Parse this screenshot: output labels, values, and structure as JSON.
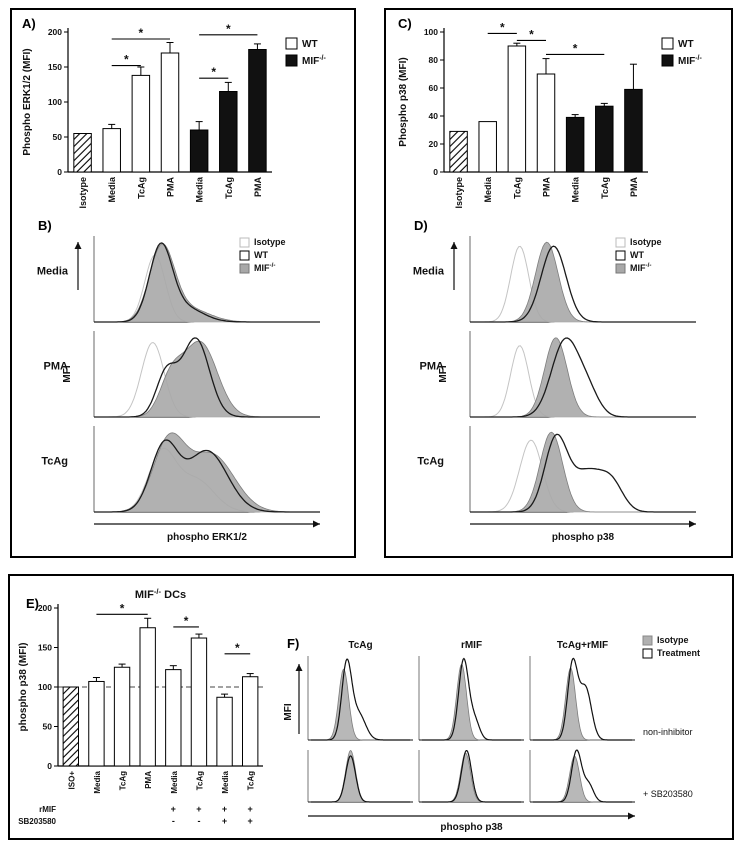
{
  "panels": {
    "a": "A)",
    "b": "B)",
    "c": "C)",
    "d": "D)",
    "e": "E)",
    "f": "F)"
  },
  "colors": {
    "black_bar": "#111111",
    "white_bar": "#ffffff",
    "hist_gray": "#a8a8a8",
    "hist_gray_stroke": "#7d7d7d",
    "iso_gray": "#c4c4c4",
    "iso_fill": "#b0b0b0",
    "line_dark": "#1a1a1a"
  },
  "chart_data": [
    {
      "id": "A",
      "type": "bar",
      "ylabel": "Phospho ERK1/2 (MFI)",
      "ylim": [
        0,
        200
      ],
      "yticks": [
        0,
        50,
        100,
        150,
        200
      ],
      "categories": [
        "Isotype",
        "Media",
        "TcAg",
        "PMA",
        "Media",
        "TcAg",
        "PMA"
      ],
      "values": [
        55,
        62,
        138,
        170,
        60,
        115,
        175
      ],
      "errors": [
        0,
        6,
        12,
        15,
        12,
        13,
        8
      ],
      "styles": [
        "hatch",
        "wt",
        "wt",
        "wt",
        "ko",
        "ko",
        "ko"
      ],
      "brackets": [
        {
          "from": 1,
          "to": 2,
          "y": 152,
          "label": "*"
        },
        {
          "from": 1,
          "to": 3,
          "y": 190,
          "label": "*"
        },
        {
          "from": 4,
          "to": 5,
          "y": 134,
          "label": "*"
        },
        {
          "from": 4,
          "to": 6,
          "y": 196,
          "label": "*"
        }
      ],
      "legend": [
        {
          "label": "WT",
          "sup": "",
          "style": "wt"
        },
        {
          "label": "MIF",
          "sup": "-/-",
          "style": "ko"
        }
      ]
    },
    {
      "id": "C",
      "type": "bar",
      "ylabel": "Phospho p38 (MFI)",
      "ylim": [
        0,
        100
      ],
      "yticks": [
        0,
        20,
        40,
        60,
        80,
        100
      ],
      "categories": [
        "Isotype",
        "Media",
        "TcAg",
        "PMA",
        "Media",
        "TcAg",
        "PMA"
      ],
      "values": [
        29,
        36,
        90,
        70,
        39,
        47,
        59
      ],
      "errors": [
        0,
        0,
        2,
        11,
        2,
        2,
        18
      ],
      "styles": [
        "hatch",
        "wt",
        "wt",
        "wt",
        "ko",
        "ko",
        "ko"
      ],
      "brackets": [
        {
          "from": 1,
          "to": 2,
          "y": 99,
          "label": "*"
        },
        {
          "from": 2,
          "to": 3,
          "y": 94,
          "label": "*"
        },
        {
          "from": 3,
          "to": 5,
          "y": 84,
          "label": "*"
        }
      ],
      "legend": [
        {
          "label": "WT",
          "sup": "",
          "style": "wt"
        },
        {
          "label": "MIF",
          "sup": "-/-",
          "style": "ko"
        }
      ]
    },
    {
      "id": "B",
      "type": "hist-stack",
      "xlabel": "phospho ERK1/2",
      "ylabel": "MFI",
      "legend": [
        {
          "label": "Isotype",
          "sup": "",
          "style": "iso"
        },
        {
          "label": "WT",
          "sup": "",
          "style": "wt"
        },
        {
          "label": "MIF",
          "sup": "-/-",
          "style": "kofill"
        }
      ],
      "rows": [
        {
          "label": "Media",
          "curves": [
            {
              "name": "Isotype",
              "style": "iso",
              "peaks": [
                {
                  "mu": 0.27,
                  "s": 0.045,
                  "a": 0.92
                }
              ]
            },
            {
              "name": "MIF-/-",
              "style": "kofill",
              "peaks": [
                {
                  "mu": 0.3,
                  "s": 0.055,
                  "a": 1.0
                },
                {
                  "mu": 0.42,
                  "s": 0.09,
                  "a": 0.18
                }
              ]
            },
            {
              "name": "WT",
              "style": "wt",
              "peaks": [
                {
                  "mu": 0.295,
                  "s": 0.05,
                  "a": 1.0
                },
                {
                  "mu": 0.4,
                  "s": 0.08,
                  "a": 0.2
                }
              ]
            }
          ]
        },
        {
          "label": "PMA",
          "curves": [
            {
              "name": "Isotype",
              "style": "iso",
              "peaks": [
                {
                  "mu": 0.26,
                  "s": 0.05,
                  "a": 0.95
                }
              ]
            },
            {
              "name": "MIF-/-",
              "style": "kofill",
              "peaks": [
                {
                  "mu": 0.47,
                  "s": 0.075,
                  "a": 0.95
                },
                {
                  "mu": 0.34,
                  "s": 0.05,
                  "a": 0.45
                }
              ]
            },
            {
              "name": "WT",
              "style": "wt",
              "peaks": [
                {
                  "mu": 0.45,
                  "s": 0.06,
                  "a": 1.0
                },
                {
                  "mu": 0.32,
                  "s": 0.045,
                  "a": 0.55
                }
              ]
            }
          ]
        },
        {
          "label": "TcAg",
          "curves": [
            {
              "name": "Isotype",
              "style": "iso",
              "peaks": [
                {
                  "mu": 0.3,
                  "s": 0.06,
                  "a": 0.8
                },
                {
                  "mu": 0.45,
                  "s": 0.08,
                  "a": 0.45
                }
              ]
            },
            {
              "name": "MIF-/-",
              "style": "kofill",
              "peaks": [
                {
                  "mu": 0.33,
                  "s": 0.07,
                  "a": 0.95
                },
                {
                  "mu": 0.52,
                  "s": 0.1,
                  "a": 0.8
                }
              ]
            },
            {
              "name": "WT",
              "style": "wt",
              "peaks": [
                {
                  "mu": 0.31,
                  "s": 0.06,
                  "a": 0.9
                },
                {
                  "mu": 0.5,
                  "s": 0.09,
                  "a": 0.85
                }
              ]
            }
          ]
        }
      ]
    },
    {
      "id": "D",
      "type": "hist-stack",
      "xlabel": "phospho p38",
      "ylabel": "MFI",
      "legend": [
        {
          "label": "Isotype",
          "sup": "",
          "style": "iso"
        },
        {
          "label": "WT",
          "sup": "",
          "style": "wt"
        },
        {
          "label": "MIF",
          "sup": "-/-",
          "style": "kofill"
        }
      ],
      "rows": [
        {
          "label": "Media",
          "curves": [
            {
              "name": "Isotype",
              "style": "iso",
              "peaks": [
                {
                  "mu": 0.22,
                  "s": 0.04,
                  "a": 0.95
                }
              ]
            },
            {
              "name": "MIF-/-",
              "style": "kofill",
              "peaks": [
                {
                  "mu": 0.34,
                  "s": 0.05,
                  "a": 1.0
                }
              ]
            },
            {
              "name": "WT",
              "style": "wt",
              "peaks": [
                {
                  "mu": 0.37,
                  "s": 0.055,
                  "a": 0.95
                }
              ]
            }
          ]
        },
        {
          "label": "PMA",
          "curves": [
            {
              "name": "Isotype",
              "style": "iso",
              "peaks": [
                {
                  "mu": 0.22,
                  "s": 0.04,
                  "a": 0.9
                }
              ]
            },
            {
              "name": "MIF-/-",
              "style": "kofill",
              "peaks": [
                {
                  "mu": 0.38,
                  "s": 0.05,
                  "a": 1.0
                }
              ]
            },
            {
              "name": "WT",
              "style": "wt",
              "peaks": [
                {
                  "mu": 0.42,
                  "s": 0.06,
                  "a": 0.95
                },
                {
                  "mu": 0.52,
                  "s": 0.05,
                  "a": 0.3
                }
              ]
            }
          ]
        },
        {
          "label": "TcAg",
          "curves": [
            {
              "name": "Isotype",
              "style": "iso",
              "peaks": [
                {
                  "mu": 0.27,
                  "s": 0.05,
                  "a": 0.9
                }
              ]
            },
            {
              "name": "MIF-/-",
              "style": "kofill",
              "peaks": [
                {
                  "mu": 0.36,
                  "s": 0.05,
                  "a": 1.0
                }
              ]
            },
            {
              "name": "WT",
              "style": "wt",
              "peaks": [
                {
                  "mu": 0.38,
                  "s": 0.05,
                  "a": 0.9
                },
                {
                  "mu": 0.52,
                  "s": 0.07,
                  "a": 0.5
                },
                {
                  "mu": 0.63,
                  "s": 0.05,
                  "a": 0.3
                }
              ]
            }
          ]
        }
      ]
    },
    {
      "id": "E",
      "type": "bar",
      "title": {
        "pre": "MIF",
        "sup": "-/-",
        "post": " DCs"
      },
      "ylabel": "phospho p38 (MFI)",
      "ylim": [
        0,
        200
      ],
      "yticks": [
        0,
        50,
        100,
        150,
        200
      ],
      "categories": [
        "ISO+",
        "Media",
        "TcAg",
        "PMA",
        "Media",
        "TcAg",
        "Media",
        "TcAg"
      ],
      "values": [
        100,
        107,
        125,
        175,
        122,
        162,
        87,
        113
      ],
      "errors": [
        0,
        5,
        4,
        12,
        5,
        5,
        4,
        4
      ],
      "styles": [
        "hatch",
        "wt",
        "wt",
        "wt",
        "wt",
        "wt",
        "wt",
        "wt"
      ],
      "baseline": 100,
      "brackets": [
        {
          "from": 1,
          "to": 3,
          "y": 192,
          "label": "*"
        },
        {
          "from": 4,
          "to": 5,
          "y": 176,
          "label": "*"
        },
        {
          "from": 6,
          "to": 7,
          "y": 142,
          "label": "*"
        }
      ],
      "cond_rows": [
        {
          "label": "rMIF",
          "marks": [
            "",
            "",
            "",
            "",
            "+",
            "+",
            "+",
            "+"
          ]
        },
        {
          "label": "SB203580",
          "marks": [
            "",
            "",
            "",
            "",
            "-",
            "-",
            "+",
            "+"
          ]
        }
      ]
    },
    {
      "id": "F",
      "type": "hist-grid",
      "xlabel": "phospho p38",
      "ylabel": "MFI",
      "col_headers": [
        "TcAg",
        "rMIF",
        "TcAg+rMIF"
      ],
      "row_labels": [
        "non-inhibitor",
        "+ SB203580"
      ],
      "legend": [
        {
          "label": "Isotype",
          "sup": "",
          "style": "isofill"
        },
        {
          "label": "Treatment",
          "sup": "",
          "style": "treat"
        }
      ],
      "cells": [
        [
          {
            "iso": [
              {
                "mu": 0.33,
                "s": 0.05,
                "a": 0.95
              }
            ],
            "treat": [
              {
                "mu": 0.36,
                "s": 0.05,
                "a": 1.0
              },
              {
                "mu": 0.48,
                "s": 0.07,
                "a": 0.35
              }
            ]
          },
          {
            "iso": [
              {
                "mu": 0.4,
                "s": 0.05,
                "a": 0.95
              }
            ],
            "treat": [
              {
                "mu": 0.42,
                "s": 0.05,
                "a": 1.0
              },
              {
                "mu": 0.53,
                "s": 0.05,
                "a": 0.25
              }
            ]
          },
          {
            "iso": [
              {
                "mu": 0.38,
                "s": 0.05,
                "a": 0.9
              }
            ],
            "treat": [
              {
                "mu": 0.4,
                "s": 0.05,
                "a": 0.95
              },
              {
                "mu": 0.53,
                "s": 0.06,
                "a": 0.65
              }
            ]
          }
        ],
        [
          {
            "iso": [
              {
                "mu": 0.4,
                "s": 0.05,
                "a": 0.95
              }
            ],
            "treat": [
              {
                "mu": 0.4,
                "s": 0.05,
                "a": 0.85
              }
            ]
          },
          {
            "iso": [
              {
                "mu": 0.44,
                "s": 0.05,
                "a": 0.95
              }
            ],
            "treat": [
              {
                "mu": 0.45,
                "s": 0.05,
                "a": 1.0
              }
            ]
          },
          {
            "iso": [
              {
                "mu": 0.42,
                "s": 0.05,
                "a": 0.9
              }
            ],
            "treat": [
              {
                "mu": 0.44,
                "s": 0.05,
                "a": 1.0
              },
              {
                "mu": 0.56,
                "s": 0.05,
                "a": 0.35
              }
            ]
          }
        ]
      ]
    }
  ]
}
